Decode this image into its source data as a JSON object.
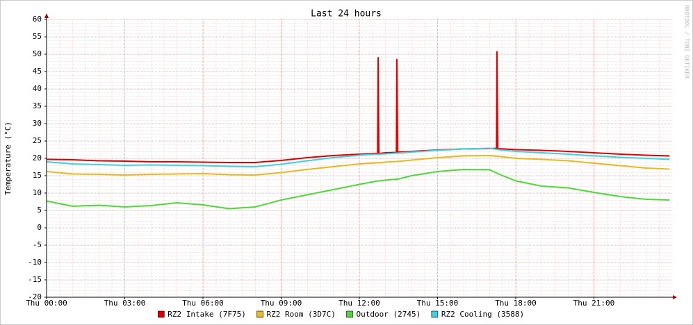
{
  "chart_data": {
    "type": "line",
    "title": "Last 24 hours",
    "y_label": "Temperature (°C)",
    "watermark": "RRDTOOL / TOBI OETIKER",
    "xlim": [
      0,
      24
    ],
    "ylim": [
      -20,
      60
    ],
    "xticks": [
      {
        "value": 0,
        "label": "Thu 00:00"
      },
      {
        "value": 3,
        "label": "Thu 03:00"
      },
      {
        "value": 6,
        "label": "Thu 06:00"
      },
      {
        "value": 9,
        "label": "Thu 09:00"
      },
      {
        "value": 12,
        "label": "Thu 12:00"
      },
      {
        "value": 15,
        "label": "Thu 15:00"
      },
      {
        "value": 18,
        "label": "Thu 18:00"
      },
      {
        "value": 21,
        "label": "Thu 21:00"
      }
    ],
    "yticks": [
      -20,
      -15,
      -10,
      -5,
      0,
      5,
      10,
      15,
      20,
      25,
      30,
      35,
      40,
      45,
      50,
      55,
      60
    ],
    "grid": true,
    "legend": "bottom",
    "x": [
      0,
      1,
      2,
      3,
      4,
      5,
      6,
      7,
      8,
      9,
      10,
      11,
      12,
      12.7,
      12.72,
      12.75,
      13,
      13.42,
      13.44,
      13.47,
      14,
      15,
      16,
      17,
      17.26,
      17.28,
      17.31,
      18,
      19,
      20,
      21,
      22,
      23,
      23.9
    ],
    "series": [
      {
        "name": "RZ2 Intake (7F75)",
        "color": "#e00000",
        "values": [
          19.7,
          19.6,
          19.3,
          19.2,
          19.0,
          19.0,
          18.9,
          18.8,
          18.8,
          19.4,
          20.2,
          20.8,
          21.2,
          21.4,
          49,
          21.4,
          21.6,
          21.7,
          48.5,
          21.8,
          22.0,
          22.4,
          22.7,
          22.8,
          22.9,
          50.7,
          22.8,
          22.5,
          22.3,
          22.0,
          21.6,
          21.2,
          20.9,
          20.7
        ]
      },
      {
        "name": "RZ2 Room (3D7C)",
        "color": "#e8b820",
        "values": [
          16.2,
          15.5,
          15.4,
          15.2,
          15.4,
          15.5,
          15.6,
          15.3,
          15.2,
          15.9,
          16.8,
          17.6,
          18.4,
          18.7,
          18.7,
          18.7,
          18.9,
          19.1,
          19.1,
          19.1,
          19.5,
          20.2,
          20.7,
          20.8,
          20.6,
          20.6,
          20.6,
          20.0,
          19.7,
          19.3,
          18.6,
          17.9,
          17.2,
          16.9
        ]
      },
      {
        "name": "Outdoor (2745)",
        "color": "#4fd83a",
        "values": [
          7.7,
          6.2,
          6.5,
          6.0,
          6.4,
          7.2,
          6.6,
          5.5,
          6.0,
          8.0,
          9.5,
          11.0,
          12.5,
          13.5,
          13.5,
          13.5,
          13.7,
          14.0,
          14.0,
          14.0,
          15.0,
          16.2,
          16.8,
          16.7,
          15.8,
          15.7,
          15.6,
          13.5,
          12.0,
          11.5,
          10.2,
          9.0,
          8.2,
          8.0
        ]
      },
      {
        "name": "RZ2 Cooling (3588)",
        "color": "#40d0e0",
        "values": [
          19.0,
          18.4,
          18.2,
          18.0,
          18.1,
          18.0,
          17.9,
          17.7,
          17.6,
          18.3,
          19.3,
          20.2,
          20.9,
          21.2,
          21.2,
          21.2,
          21.3,
          21.5,
          21.5,
          21.5,
          21.8,
          22.3,
          22.7,
          22.9,
          22.6,
          22.6,
          22.5,
          22.0,
          21.6,
          21.2,
          20.7,
          20.3,
          20.0,
          19.7
        ]
      }
    ]
  }
}
